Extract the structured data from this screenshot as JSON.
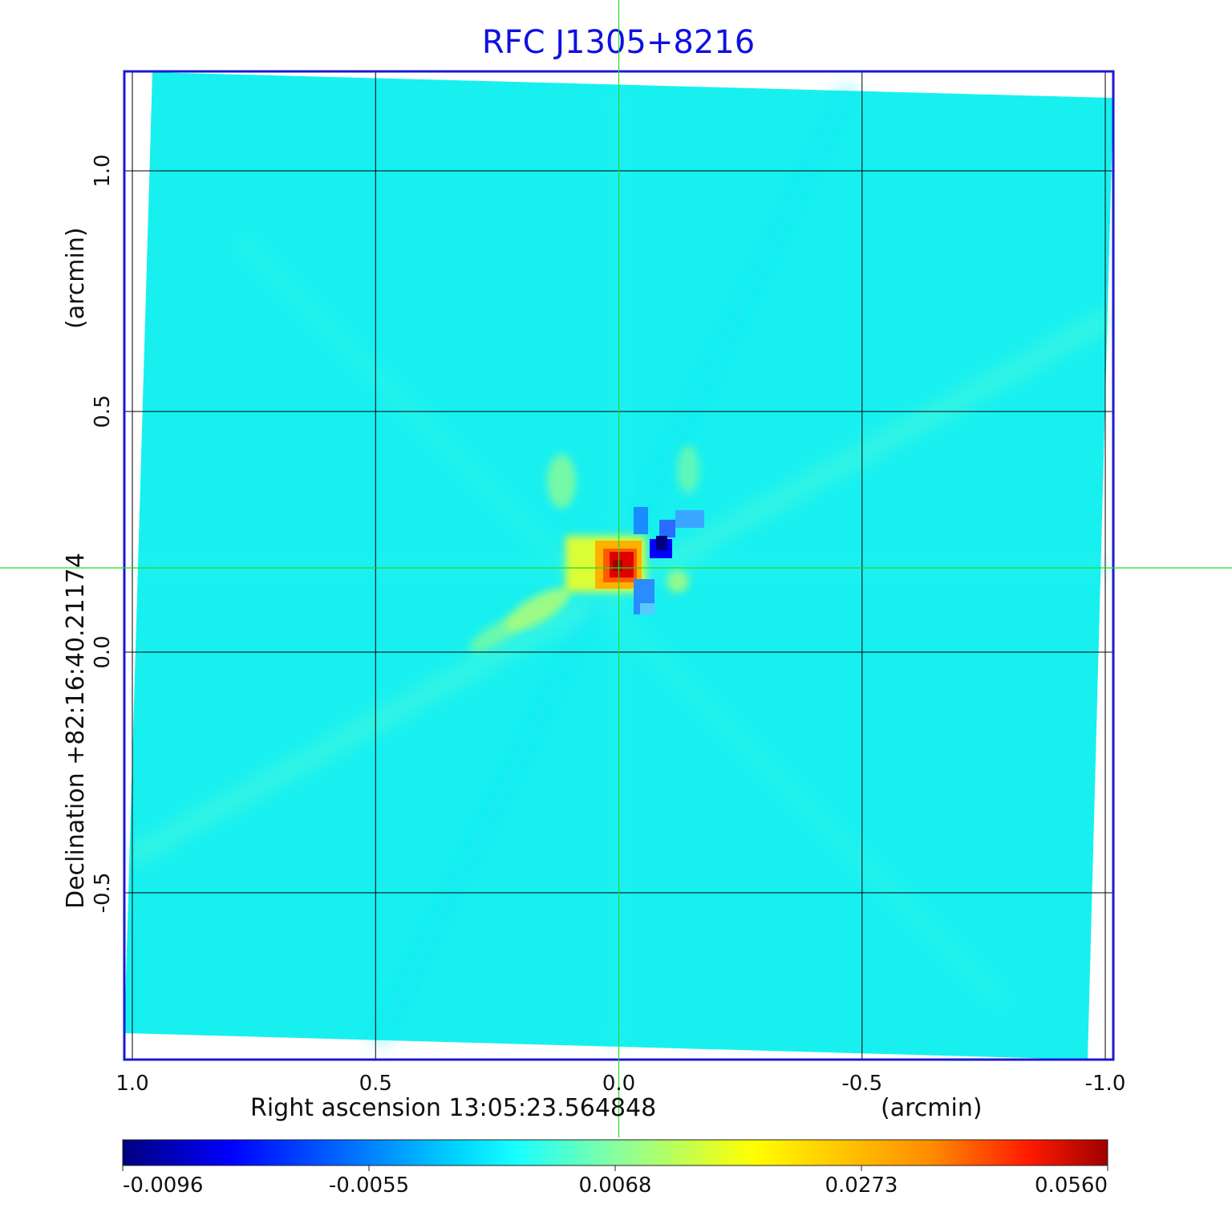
{
  "chart_data": {
    "type": "heatmap",
    "title": "RFC J1305+8216",
    "xlabel": "Right ascension  13:05:23.564848",
    "xlabel_unit": "(arcmin)",
    "ylabel": "Declination  +82:16:40.21174",
    "ylabel_unit": "(arcmin)",
    "x_axis_reversed": true,
    "xlim": [
      1.0,
      -1.0
    ],
    "ylim": [
      -0.9,
      1.2
    ],
    "x_ticks": [
      {
        "value": 1.0,
        "label": "1.0"
      },
      {
        "value": 0.5,
        "label": "0.5"
      },
      {
        "value": 0.0,
        "label": "0.0"
      },
      {
        "value": -0.5,
        "label": "-0.5"
      },
      {
        "value": -1.0,
        "label": "-1.0"
      }
    ],
    "y_ticks": [
      {
        "value": 1.0,
        "label": "1.0"
      },
      {
        "value": 0.5,
        "label": "0.5"
      },
      {
        "value": 0.0,
        "label": "0.0"
      },
      {
        "value": -0.5,
        "label": "-0.5"
      }
    ],
    "grid": true,
    "crosshair": {
      "x": 0.0,
      "y": 0.175,
      "color": "#22dd22"
    },
    "colormap": "jet",
    "colorbar": {
      "placement": "bottom",
      "min": -0.0096,
      "max": 0.056,
      "tick_labels": [
        "-0.0096",
        "-0.0055",
        "0.0068",
        "0.0273",
        "0.0560"
      ]
    },
    "peak": {
      "x": 0.0,
      "y": 0.175,
      "value": 0.056
    },
    "minimum": {
      "x": -0.09,
      "y": 0.22,
      "value": -0.0096
    },
    "background_level": 0.0,
    "colors": {
      "title": "#1010e0",
      "frame": "#1a1ad0",
      "grid": "#000000",
      "crosshair": "#22dd22",
      "background_field": "#18f0f0"
    }
  }
}
